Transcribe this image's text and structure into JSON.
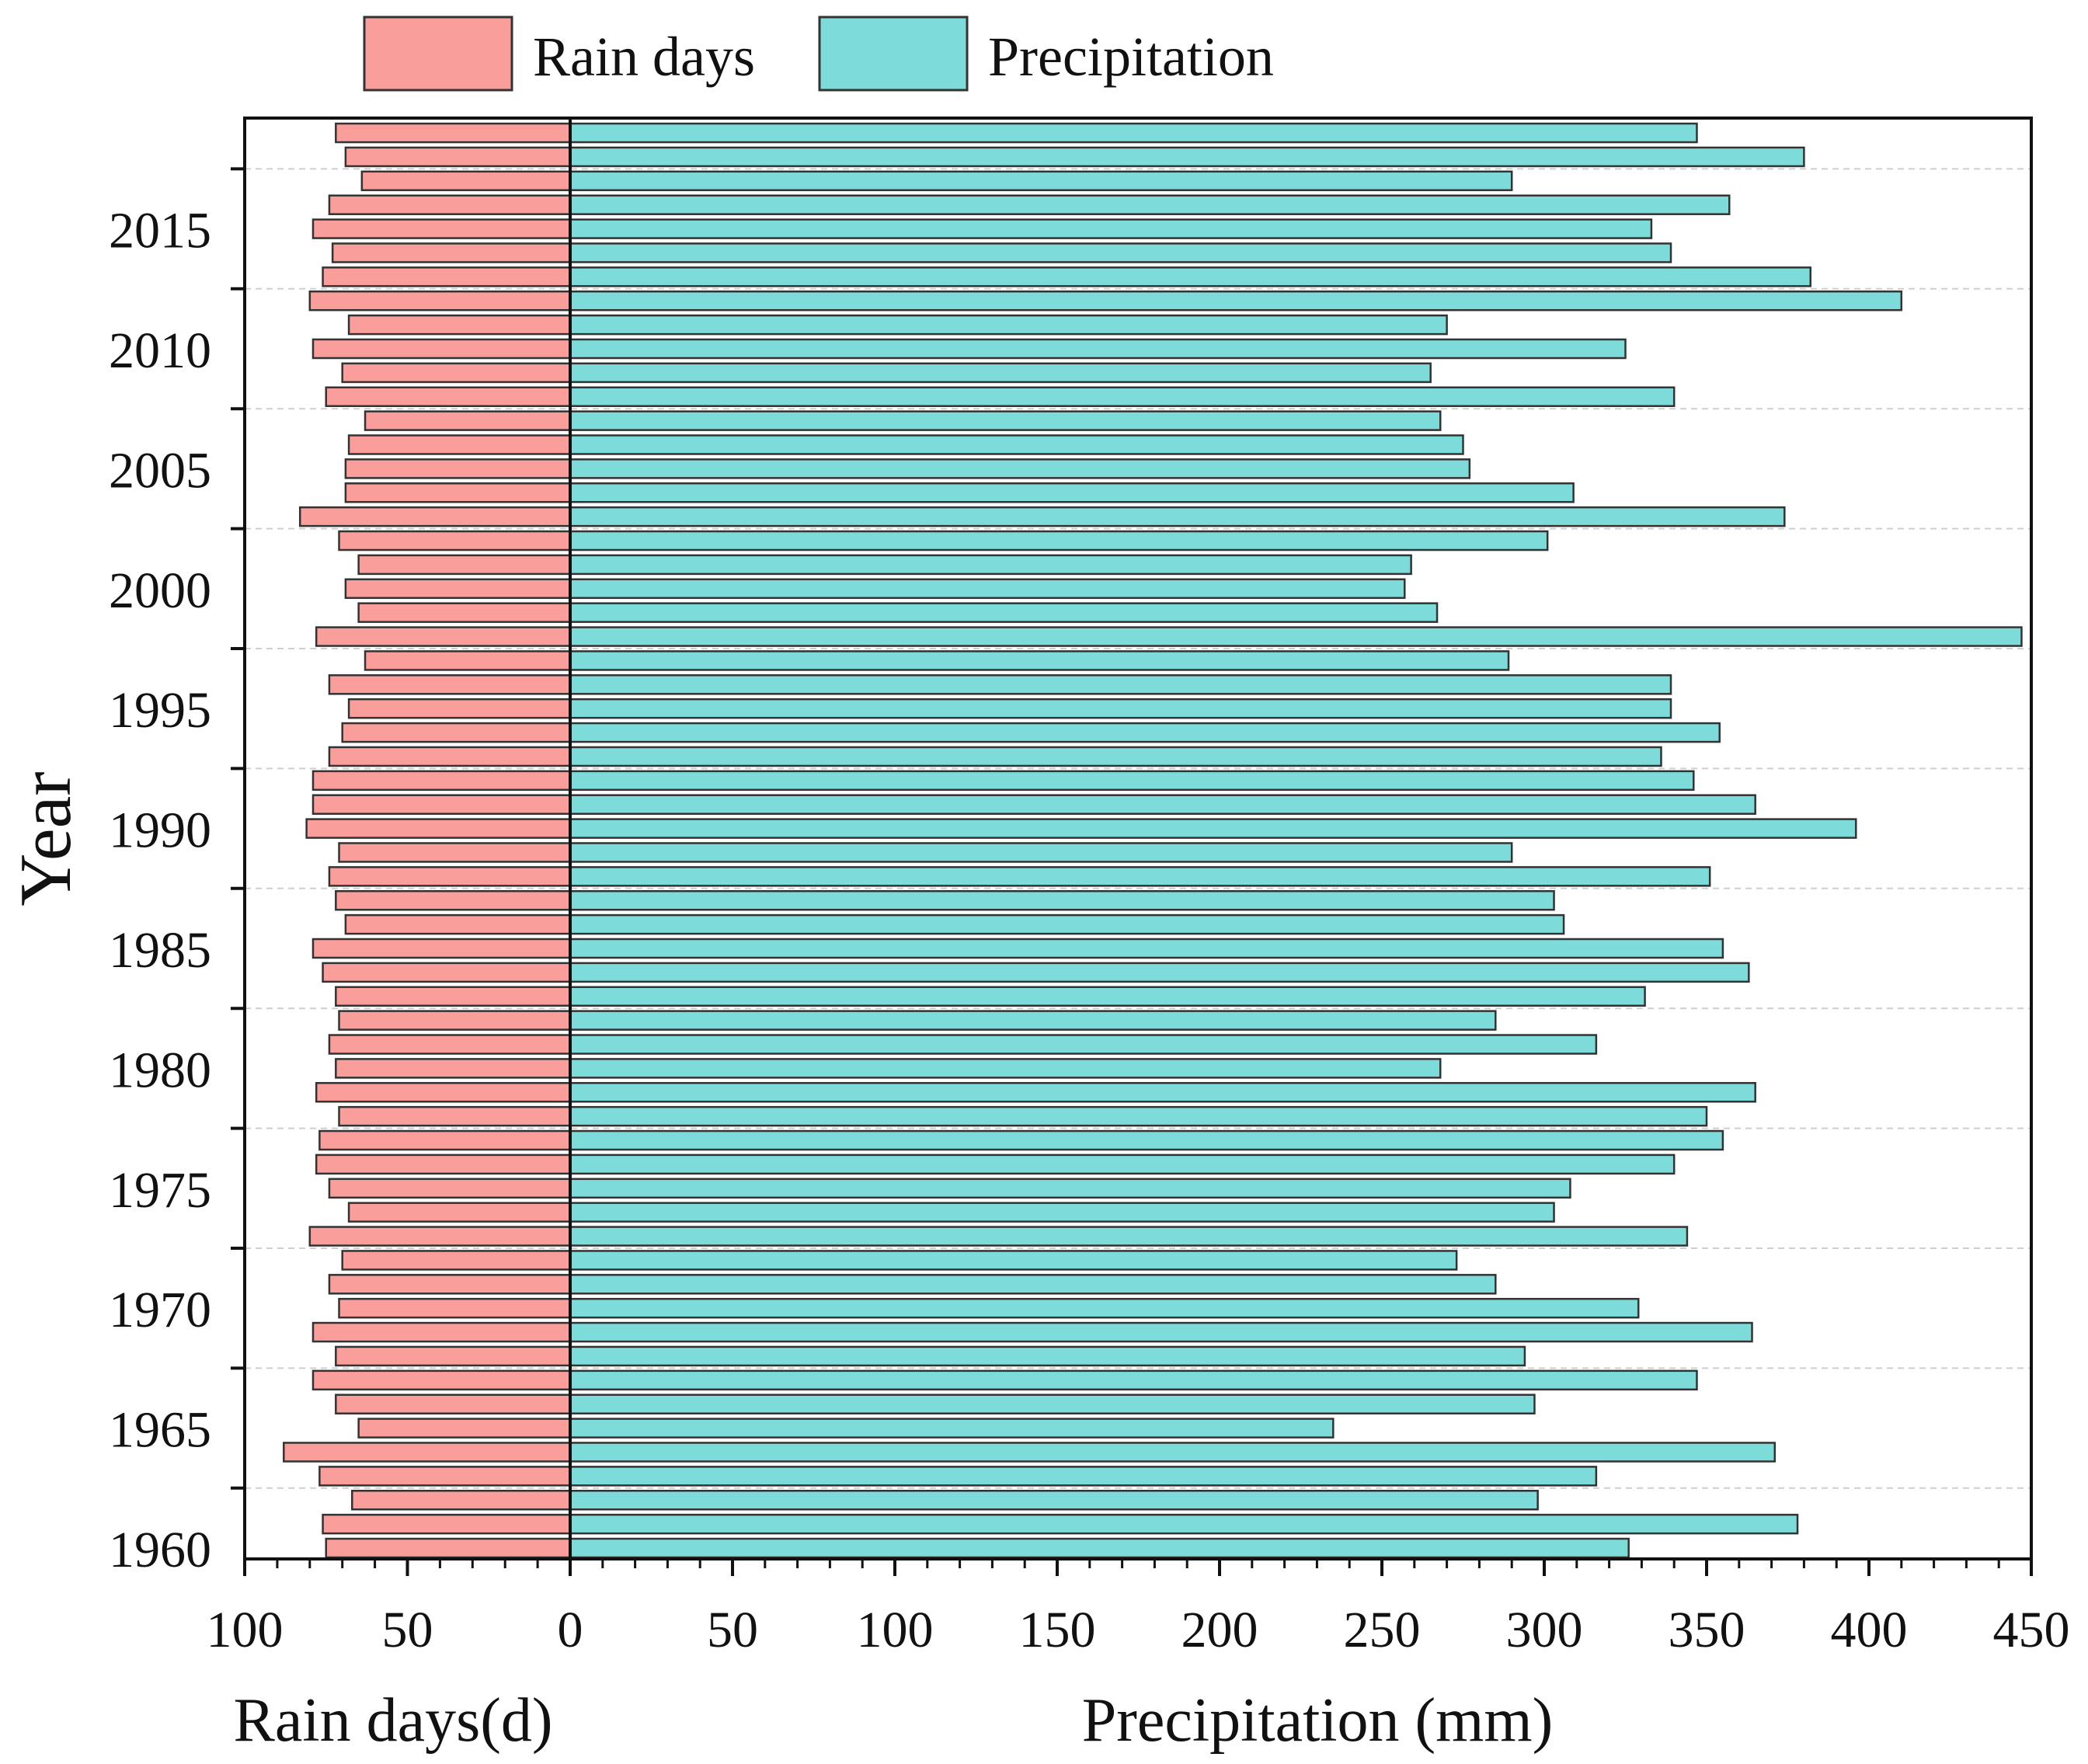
{
  "chart_data": {
    "type": "bar",
    "orientation": "horizontal",
    "layout": "diverging",
    "legend": {
      "position": "top",
      "entries": [
        "Rain days",
        "Precipitation"
      ]
    },
    "y_axis": {
      "label": "Year",
      "tick_labels": [
        "1960",
        "1965",
        "1970",
        "1975",
        "1980",
        "1985",
        "1990",
        "1995",
        "2000",
        "2005",
        "2010",
        "2015"
      ]
    },
    "left_axis": {
      "label": "Rain days(d)",
      "range": [
        100,
        0
      ],
      "tick_labels": [
        "100",
        "50",
        "0"
      ]
    },
    "right_axis": {
      "label": "Precipitation (mm)",
      "range": [
        0,
        450
      ],
      "tick_labels": [
        "0",
        "50",
        "100",
        "150",
        "200",
        "250",
        "300",
        "350",
        "400",
        "450"
      ]
    },
    "years": [
      1960,
      1961,
      1962,
      1963,
      1964,
      1965,
      1966,
      1967,
      1968,
      1969,
      1970,
      1971,
      1972,
      1973,
      1974,
      1975,
      1976,
      1977,
      1978,
      1979,
      1980,
      1981,
      1982,
      1983,
      1984,
      1985,
      1986,
      1987,
      1988,
      1989,
      1990,
      1991,
      1992,
      1993,
      1994,
      1995,
      1996,
      1997,
      1998,
      1999,
      2000,
      2001,
      2002,
      2003,
      2004,
      2005,
      2006,
      2007,
      2008,
      2009,
      2010,
      2011,
      2012,
      2013,
      2014,
      2015,
      2016,
      2017,
      2018,
      2019
    ],
    "series": [
      {
        "name": "Rain days",
        "color": "#FA9E9B",
        "values": [
          75,
          76,
          67,
          77,
          88,
          65,
          72,
          79,
          72,
          79,
          71,
          74,
          70,
          80,
          68,
          74,
          78,
          77,
          71,
          78,
          72,
          74,
          71,
          72,
          76,
          79,
          69,
          72,
          74,
          71,
          81,
          79,
          79,
          74,
          70,
          68,
          74,
          63,
          78,
          65,
          69,
          65,
          71,
          83,
          69,
          69,
          68,
          63,
          75,
          70,
          79,
          68,
          80,
          76,
          73,
          79,
          74,
          64,
          69,
          72
        ]
      },
      {
        "name": "Precipitation",
        "color": "#7DDBDA",
        "values": [
          326,
          378,
          298,
          316,
          371,
          235,
          297,
          347,
          294,
          364,
          329,
          285,
          273,
          344,
          303,
          308,
          340,
          355,
          350,
          365,
          268,
          316,
          285,
          331,
          363,
          355,
          306,
          303,
          351,
          290,
          396,
          365,
          346,
          336,
          354,
          339,
          339,
          289,
          447,
          267,
          257,
          259,
          301,
          374,
          309,
          277,
          275,
          268,
          340,
          265,
          325,
          270,
          410,
          382,
          339,
          333,
          357,
          290,
          380,
          347
        ]
      }
    ],
    "gridlines": "dashed horizontal"
  }
}
